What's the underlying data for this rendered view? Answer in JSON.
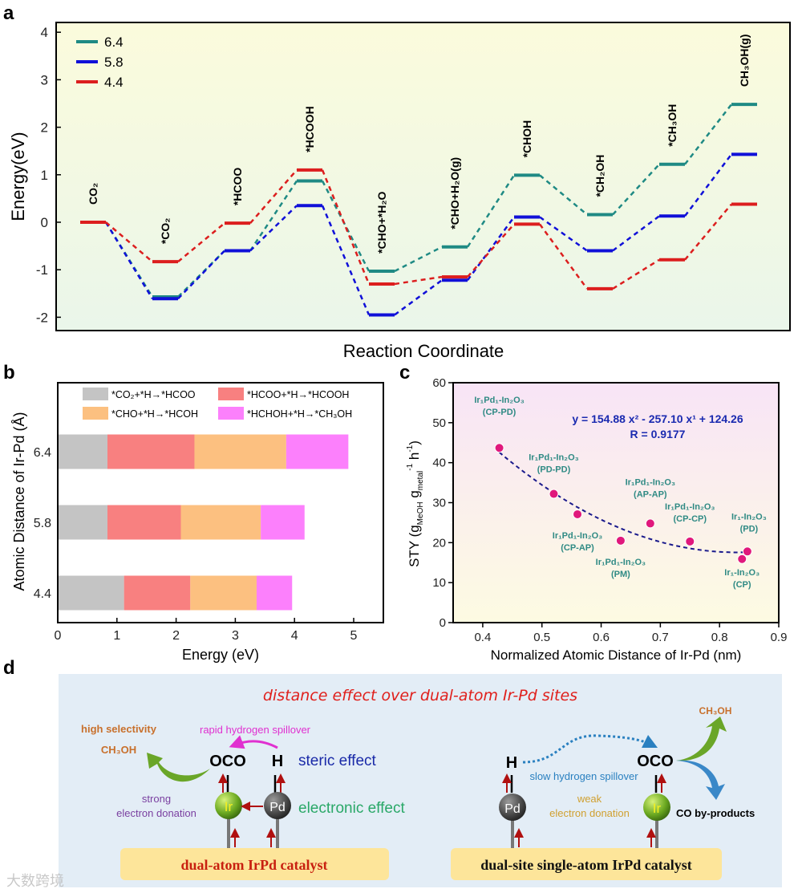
{
  "panels": {
    "a": "a",
    "b": "b",
    "c": "c",
    "d": "d"
  },
  "chart_data": [
    {
      "type": "line",
      "id": "a",
      "title": "",
      "xlabel": "Reaction Coordinate",
      "ylabel": "Energy(eV)",
      "ylim": [
        -2.2,
        4.2
      ],
      "yticks": [
        -2,
        -1,
        0,
        1,
        2,
        3,
        4
      ],
      "categories": [
        "CO₂",
        "*CO₂",
        "*HCOO",
        "*HCOOH",
        "*CHO+*H₂O",
        "*CHO+H₂O(g)",
        "*CHOH",
        "*CH₂OH",
        "*CH₃OH",
        "CH₃OH(g)"
      ],
      "legend_position": "top-left",
      "series": [
        {
          "name": "6.4",
          "color": "#1f8a84",
          "values": [
            0,
            -1.57,
            -0.6,
            0.87,
            -1.03,
            -0.52,
            0.99,
            0.16,
            1.22,
            2.48
          ]
        },
        {
          "name": "5.8",
          "color": "#1010d8",
          "values": [
            0,
            -1.61,
            -0.6,
            0.35,
            -1.95,
            -1.22,
            0.11,
            -0.6,
            0.13,
            1.43
          ]
        },
        {
          "name": "4.4",
          "color": "#dc1e1e",
          "values": [
            0,
            -0.83,
            -0.02,
            1.1,
            -1.3,
            -1.15,
            -0.04,
            -1.4,
            -0.79,
            0.38
          ]
        }
      ]
    },
    {
      "type": "bar",
      "id": "b",
      "orientation": "horizontal-stacked",
      "xlabel": "Energy (eV)",
      "ylabel": "Atomic Distance of Ir-Pd (Å)",
      "xlim": [
        0,
        5.5
      ],
      "xticks": [
        0,
        1,
        2,
        3,
        4,
        5
      ],
      "categories": [
        "6.4",
        "5.8",
        "4.4"
      ],
      "legend_position": "top",
      "series": [
        {
          "name": "*CO₂+*H→*HCOO",
          "color": "#c4c4c4",
          "values": [
            0.84,
            0.84,
            1.12
          ]
        },
        {
          "name": "*HCOO+*H→*HCOOH",
          "color": "#f88080",
          "values": [
            1.47,
            1.24,
            1.12
          ]
        },
        {
          "name": "*CHO+*H→*HCOH",
          "color": "#fcc080",
          "values": [
            1.55,
            1.35,
            1.12
          ]
        },
        {
          "name": "*HCHOH+*H→*CH₃OH",
          "color": "#fc80fc",
          "values": [
            1.05,
            0.74,
            0.6
          ]
        }
      ]
    },
    {
      "type": "scatter",
      "id": "c",
      "xlabel": "Normalized Atomic Distance of Ir-Pd (nm)",
      "ylabel": {
        "a": "STY (g",
        "b": "MeOH",
        "c": " g",
        "d": "metal",
        "e": "-1",
        "f": " h",
        "g": "-1",
        "h": ")"
      },
      "xlim": [
        0.35,
        0.9
      ],
      "ylim": [
        0,
        60
      ],
      "xticks": [
        "0.4",
        "0.5",
        "0.6",
        "0.7",
        "0.8",
        "0.9"
      ],
      "yticks": [
        "0",
        "10",
        "20",
        "30",
        "40",
        "50",
        "60"
      ],
      "fit": {
        "equation": "y = 154.88 x² - 257.10 x¹ + 124.26",
        "r": "R = 0.9177",
        "a": 154.88,
        "b": -257.1,
        "c": 124.26,
        "x_range": [
          0.428,
          0.847
        ],
        "color": "#1a1a8c"
      },
      "point_color": "#e0187c",
      "points": [
        {
          "x": 0.428,
          "y": 43.7,
          "name": "Ir₁Pd₁-In₂O₃",
          "tag": "(CP-PD)"
        },
        {
          "x": 0.52,
          "y": 32.2,
          "name": "Ir₁Pd₁-In₂O₃",
          "tag": "(PD-PD)"
        },
        {
          "x": 0.56,
          "y": 27.1,
          "name": "Ir₁Pd₁-In₂O₃",
          "tag": "(CP-AP)"
        },
        {
          "x": 0.633,
          "y": 20.5,
          "name": "Ir₁Pd₁-In₂O₃",
          "tag": "(PM)"
        },
        {
          "x": 0.683,
          "y": 24.8,
          "name": "Ir₁Pd₁-In₂O₃",
          "tag": "(AP-AP)"
        },
        {
          "x": 0.75,
          "y": 20.3,
          "name": "Ir₁Pd₁-In₂O₃",
          "tag": "(CP-CP)"
        },
        {
          "x": 0.838,
          "y": 15.9,
          "name": "Ir₁-In₂O₃",
          "tag": "(CP)"
        },
        {
          "x": 0.847,
          "y": 17.8,
          "name": "Ir₁-In₂O₃",
          "tag": "(PD)"
        }
      ]
    }
  ],
  "diagram": {
    "title": "distance effect over dual-atom Ir-Pd sites",
    "left": {
      "high_selectivity": "high selectivity",
      "product": "CH₃OH",
      "spillover": "rapid hydrogen spillover",
      "oco": "OCO",
      "h": "H",
      "steric": "steric effect",
      "ir": "Ir",
      "pd": "Pd",
      "donation_1": "strong",
      "donation_2": "electron donation",
      "electronic": "electronic effect",
      "catalyst": "dual-atom IrPd catalyst"
    },
    "right": {
      "h": "H",
      "spillover": "slow hydrogen spillover",
      "oco": "OCO",
      "product": "CH₃OH",
      "byproduct": "CO by-products",
      "pd": "Pd",
      "ir": "Ir",
      "donation_1": "weak",
      "donation_2": "electron donation",
      "catalyst": "dual-site single-atom IrPd catalyst"
    }
  },
  "watermark": "大数跨境"
}
